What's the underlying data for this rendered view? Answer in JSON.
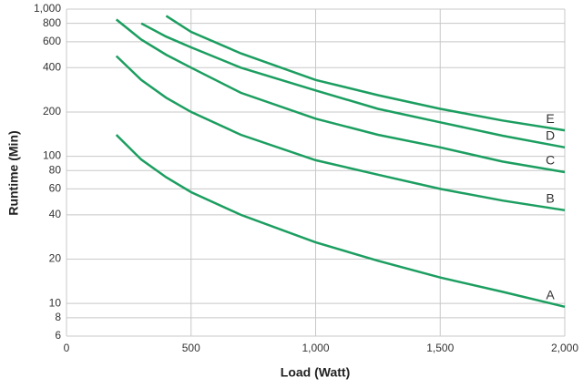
{
  "chart_data": {
    "type": "line",
    "x_label": "Load (Watt)",
    "y_label": "Runtime (Min)",
    "x": [
      200,
      300,
      400,
      500,
      700,
      1000,
      1250,
      1500,
      1750,
      2000
    ],
    "series": [
      {
        "name": "A",
        "color": "#1c9e60",
        "values": [
          140,
          95,
          72,
          57,
          40,
          26,
          19.5,
          15,
          12,
          9.5
        ]
      },
      {
        "name": "B",
        "color": "#1c9e60",
        "values": [
          480,
          330,
          250,
          200,
          140,
          94,
          75,
          60,
          50,
          43
        ]
      },
      {
        "name": "C",
        "color": "#1c9e60",
        "values": [
          850,
          620,
          490,
          400,
          270,
          180,
          140,
          115,
          92,
          78
        ]
      },
      {
        "name": "D",
        "color": "#1c9e60",
        "values": [
          null,
          800,
          650,
          550,
          400,
          280,
          210,
          170,
          138,
          115
        ]
      },
      {
        "name": "E",
        "color": "#1c9e60",
        "values": [
          null,
          null,
          900,
          700,
          500,
          330,
          260,
          210,
          175,
          150
        ]
      }
    ],
    "xlim": [
      0,
      2000
    ],
    "xticks": [
      0,
      500,
      {
        "value": 1000,
        "label": "1,000"
      },
      {
        "value": 1500,
        "label": "1,500"
      },
      {
        "value": 2000,
        "label": "2,000"
      }
    ],
    "ylim": [
      6,
      1000
    ],
    "log_y": true,
    "yticks": [
      6,
      8,
      10,
      20,
      40,
      60,
      80,
      100,
      200,
      400,
      600,
      800,
      {
        "value": 1000,
        "label": "1,000"
      }
    ],
    "grid": true
  }
}
